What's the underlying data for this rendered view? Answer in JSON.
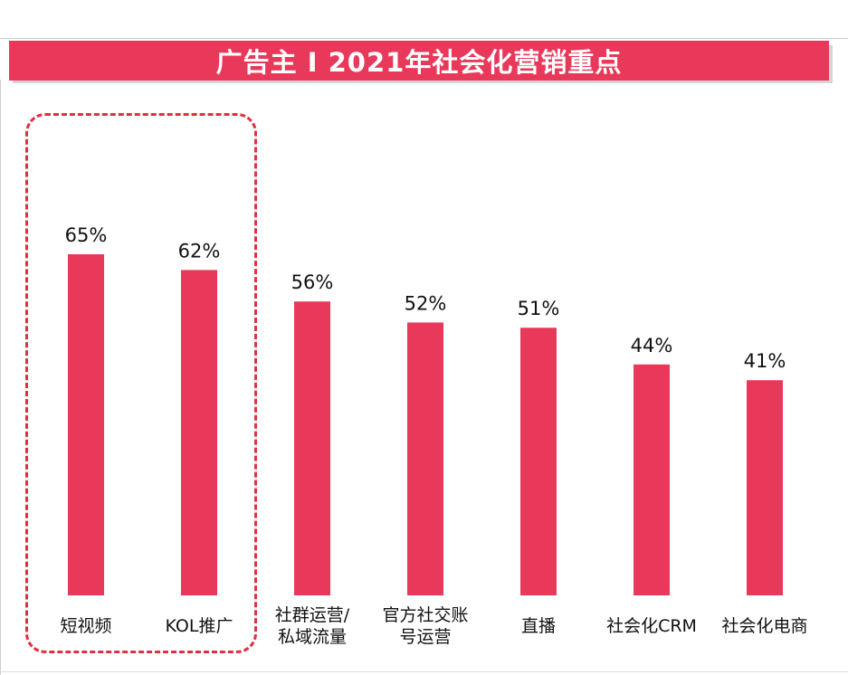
{
  "header": {
    "title": "广告主 I 2021年社会化营销重点"
  },
  "colors": {
    "bar": "#e8395a",
    "banner": "#e8395a",
    "highlight": "#e03040"
  },
  "chart_data": {
    "type": "bar",
    "title": "广告主 I 2021年社会化营销重点",
    "categories": [
      "短视频",
      "KOL推广",
      "社群运营/私域流量",
      "官方社交账号运营",
      "直播",
      "社会化CRM",
      "社会化电商"
    ],
    "category_lines": [
      [
        "短视频"
      ],
      [
        "KOL推广"
      ],
      [
        "社群运营/",
        "私域流量"
      ],
      [
        "官方社交账",
        "号运营"
      ],
      [
        "直播"
      ],
      [
        "社会化CRM"
      ],
      [
        "社会化电商"
      ]
    ],
    "values": [
      65,
      62,
      56,
      52,
      51,
      44,
      41
    ],
    "value_labels": [
      "65%",
      "62%",
      "56%",
      "52%",
      "51%",
      "44%",
      "41%"
    ],
    "unit": "%",
    "ylim": [
      0,
      100
    ],
    "grid": false,
    "legend": "none",
    "highlighted_categories": [
      "短视频",
      "KOL推广"
    ]
  }
}
